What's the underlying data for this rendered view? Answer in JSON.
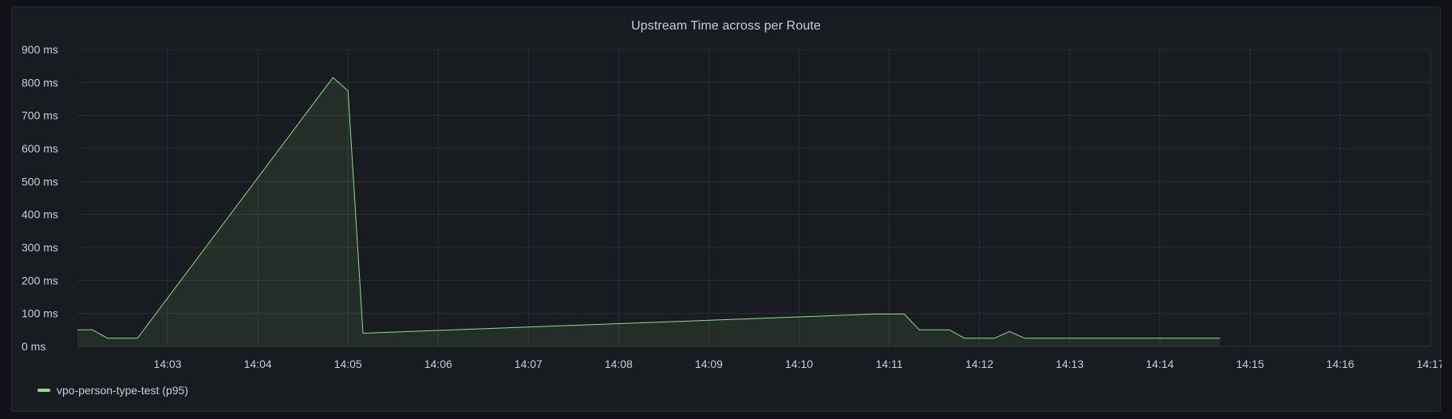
{
  "colors": {
    "series": "#96d98d",
    "grid": "#2c3036",
    "text": "#ccccdc",
    "panel_bg": "#181b1f"
  },
  "chart_data": {
    "type": "area",
    "title": "Upstream Time across per Route",
    "y_unit": "ms",
    "ylim": [
      0,
      900
    ],
    "y_ticks": [
      "0 ms",
      "100 ms",
      "200 ms",
      "300 ms",
      "400 ms",
      "500 ms",
      "600 ms",
      "700 ms",
      "800 ms",
      "900 ms"
    ],
    "xlim": [
      "14:02:00",
      "14:17:00"
    ],
    "x_ticks": [
      "14:03",
      "14:04",
      "14:05",
      "14:06",
      "14:07",
      "14:08",
      "14:09",
      "14:10",
      "14:11",
      "14:12",
      "14:13",
      "14:14",
      "14:15",
      "14:16",
      "14:17"
    ],
    "grid": true,
    "legend_position": "bottom-left",
    "series": [
      {
        "name": "vpo-person-type-test (p95)",
        "points": [
          [
            "14:02:00",
            50
          ],
          [
            "14:02:10",
            50
          ],
          [
            "14:02:20",
            25
          ],
          [
            "14:02:40",
            25
          ],
          [
            "14:04:50",
            815
          ],
          [
            "14:05:00",
            775
          ],
          [
            "14:05:10",
            40
          ],
          [
            "14:10:50",
            98
          ],
          [
            "14:11:10",
            98
          ],
          [
            "14:11:20",
            50
          ],
          [
            "14:11:40",
            50
          ],
          [
            "14:11:50",
            25
          ],
          [
            "14:12:10",
            25
          ],
          [
            "14:12:20",
            45
          ],
          [
            "14:12:30",
            25
          ],
          [
            "14:14:40",
            25
          ]
        ]
      }
    ]
  }
}
